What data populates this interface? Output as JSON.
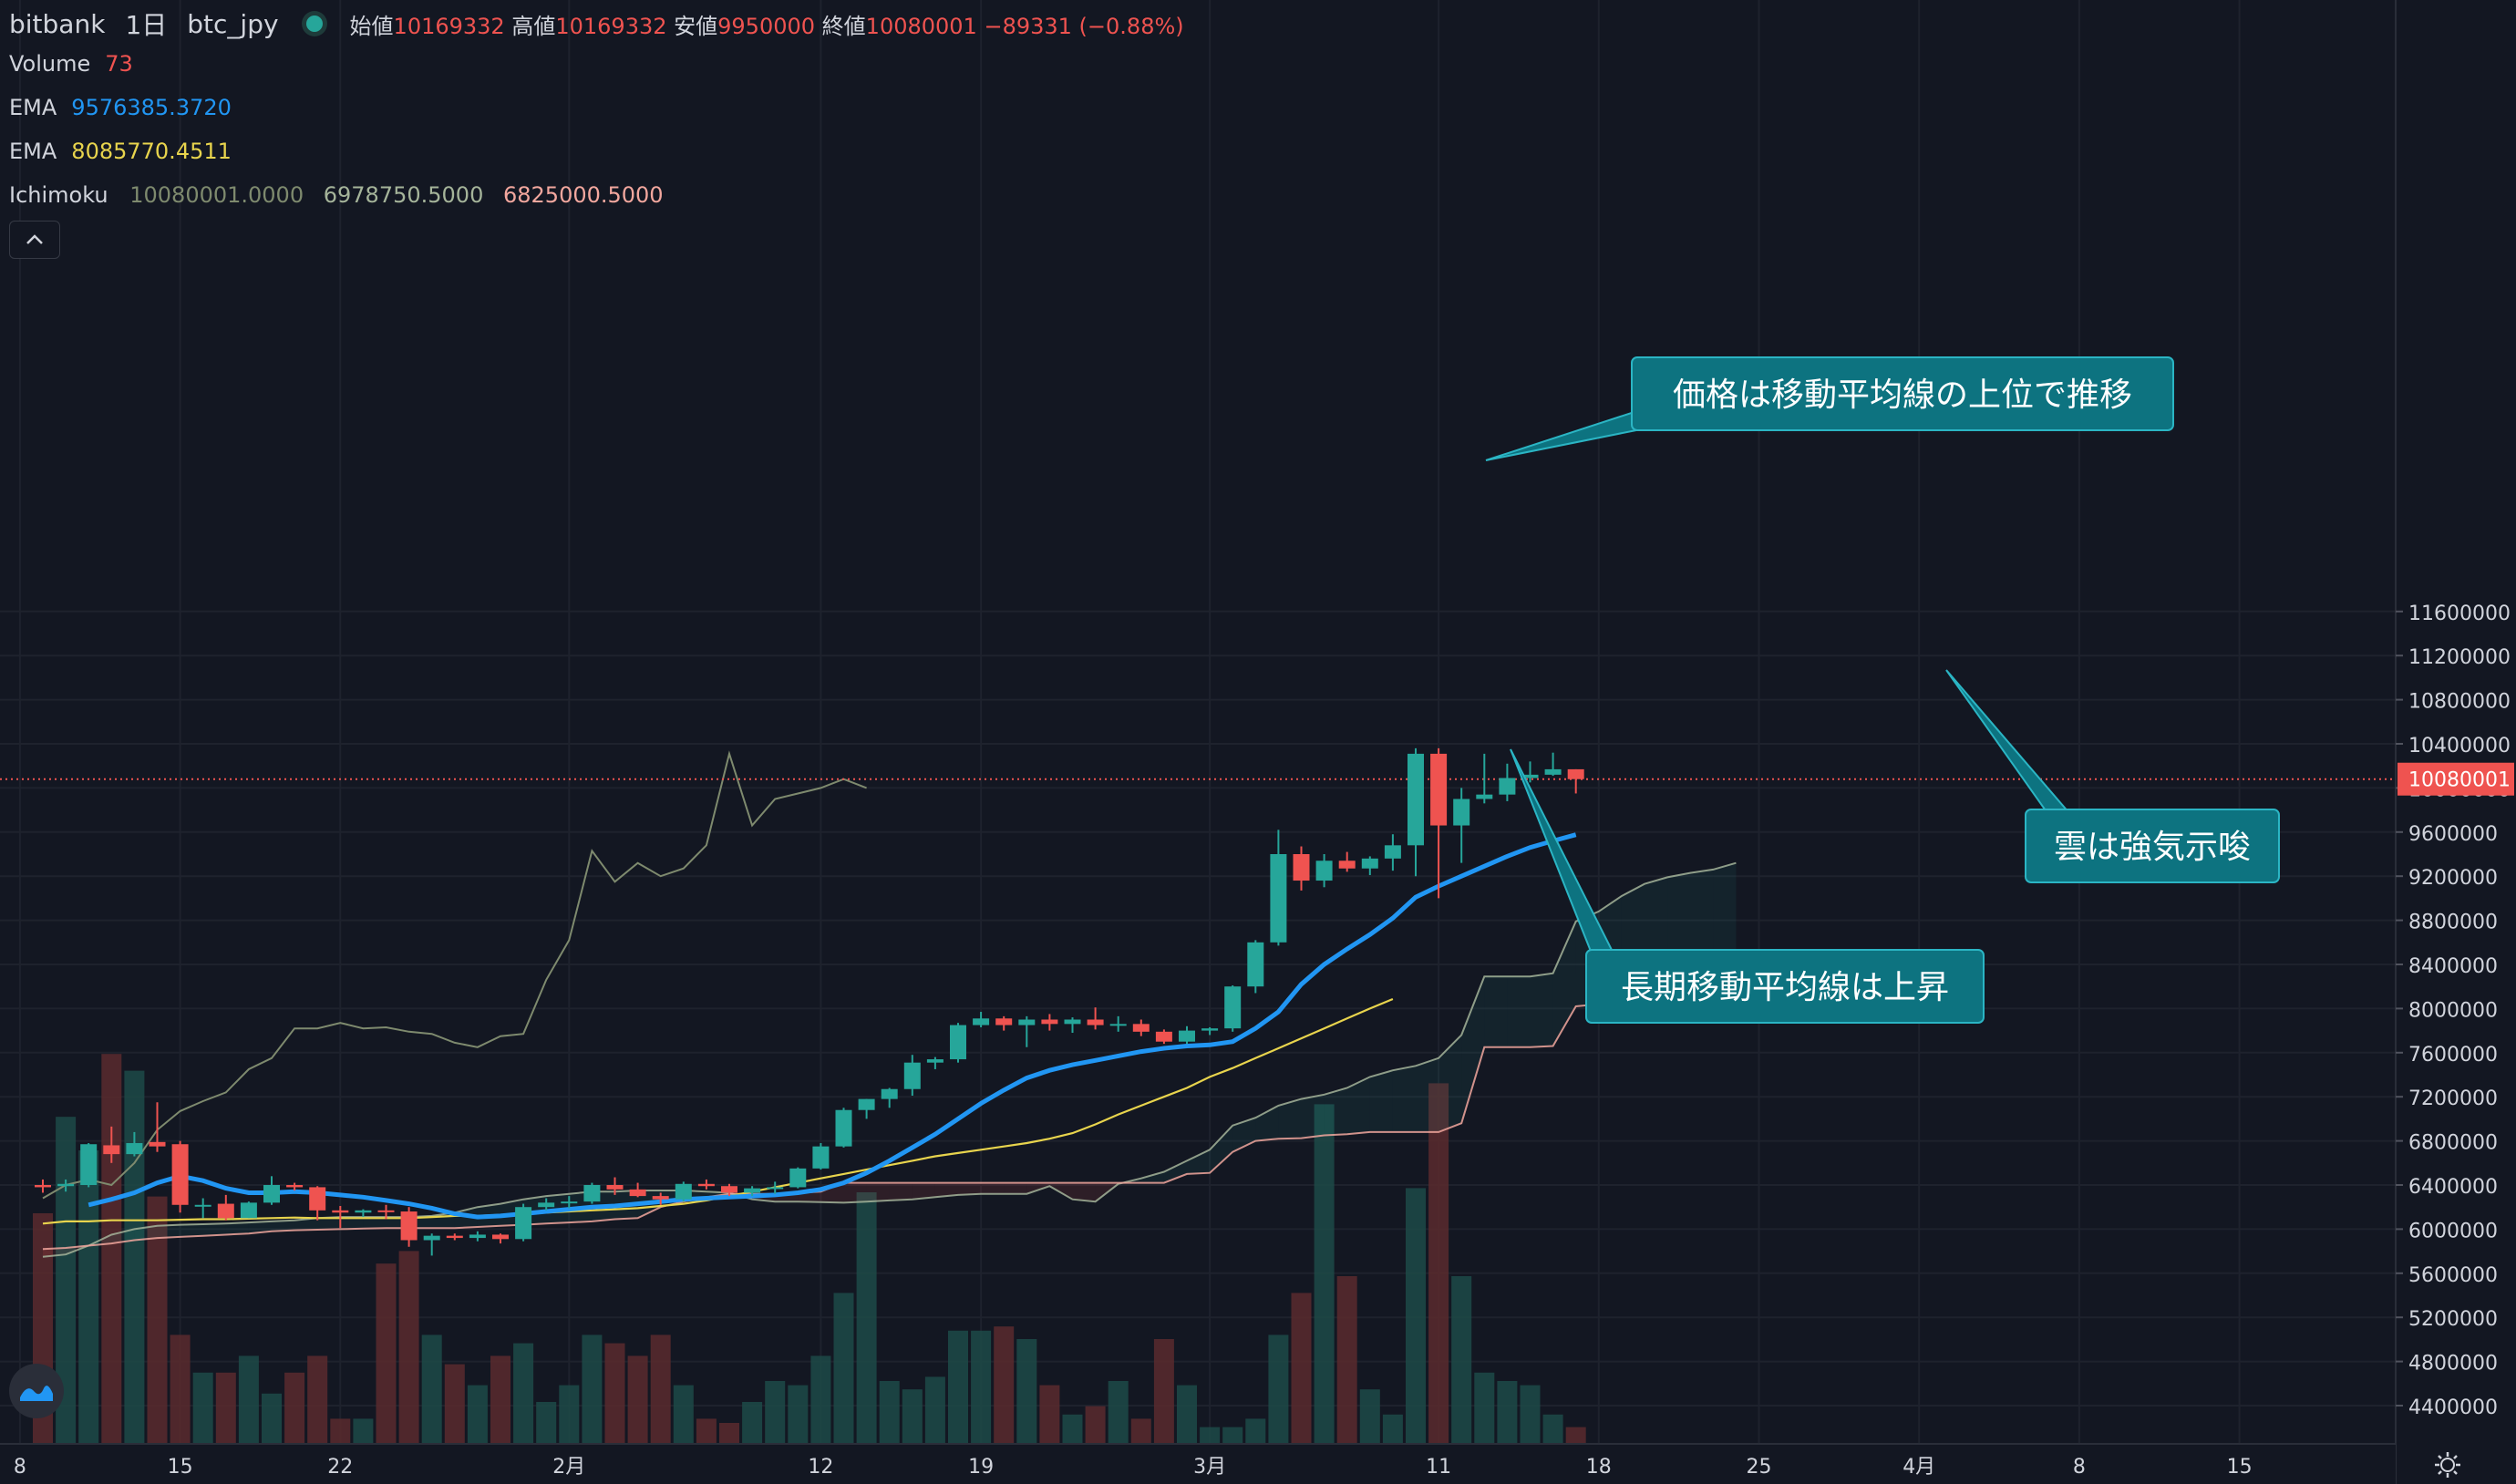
{
  "header": {
    "exchange": "bitbank",
    "interval": "1日",
    "pair": "btc_jpy",
    "open_label": "始値",
    "open": "10169332",
    "high_label": "高値",
    "high": "10169332",
    "low_label": "安値",
    "low": "9950000",
    "close_label": "終値",
    "close": "10080001",
    "change": "−89331 (−0.88%)"
  },
  "indicators": {
    "volume": {
      "label": "Volume",
      "value": "73",
      "color": "#ef5350"
    },
    "ema_fast": {
      "label": "EMA",
      "value": "9576385.3720",
      "color": "#2196f3"
    },
    "ema_slow": {
      "label": "EMA",
      "value": "8085770.4511",
      "color": "#e8d44d"
    },
    "ichimoku": {
      "label": "Ichimoku",
      "values": [
        "10080001.0000",
        "6978750.5000",
        "6825000.5000"
      ],
      "colors": [
        "#7e8a6e",
        "#a5b49a",
        "#f2a79e"
      ]
    }
  },
  "colors": {
    "background": "#131722",
    "up": "#26a69a",
    "down": "#ef5350",
    "grid": "#1e222d",
    "axis_text": "#d1d4dc",
    "annotation_bg": "#0d7380",
    "annotation_border": "#2bb5c4"
  },
  "icons": {
    "collapse": "chevron-up-icon",
    "logo": "tradingview-logo-icon",
    "settings": "gear-icon"
  },
  "chart_data": {
    "type": "candlestick",
    "price_axis": {
      "ticks": [
        11600000,
        11200000,
        10800000,
        10400000,
        10000000,
        9600000,
        9200000,
        8800000,
        8400000,
        8000000,
        7600000,
        7200000,
        6800000,
        6400000,
        6000000,
        5600000,
        5200000,
        4800000,
        4400000
      ],
      "labels": [
        "11600000",
        "11200000",
        "10800000",
        "10400000",
        "10000000",
        "9600000",
        "9200000",
        "8800000",
        "8400000",
        "8000000",
        "7600000",
        "7200000",
        "6800000",
        "6400000",
        "6000000",
        "5600000",
        "5200000",
        "4800000",
        "4400000"
      ],
      "last_price": 10080001,
      "last_price_label": "10080001",
      "ylim": [
        4400000,
        11700000
      ]
    },
    "time_axis": {
      "labels": [
        {
          "t": -1,
          "label": "8"
        },
        {
          "t": 6,
          "label": "15"
        },
        {
          "t": 13,
          "label": "22"
        },
        {
          "t": 23,
          "label": "2月"
        },
        {
          "t": 34,
          "label": "12"
        },
        {
          "t": 41,
          "label": "19"
        },
        {
          "t": 51,
          "label": "3月"
        },
        {
          "t": 61,
          "label": "11"
        },
        {
          "t": 68,
          "label": "18"
        },
        {
          "t": 75,
          "label": "25"
        },
        {
          "t": 82,
          "label": "4月"
        },
        {
          "t": 89,
          "label": "8"
        },
        {
          "t": 96,
          "label": "15"
        }
      ]
    },
    "candles": [
      [
        6400000,
        6450000,
        6330000,
        6380000
      ],
      [
        6390000,
        6450000,
        6340000,
        6410000
      ],
      [
        6400000,
        6780000,
        6380000,
        6770000
      ],
      [
        6760000,
        6930000,
        6600000,
        6680000
      ],
      [
        6680000,
        6880000,
        6660000,
        6780000
      ],
      [
        6790000,
        7150000,
        6700000,
        6750000
      ],
      [
        6770000,
        6800000,
        6150000,
        6220000
      ],
      [
        6220000,
        6280000,
        6100000,
        6220000
      ],
      [
        6230000,
        6310000,
        6080000,
        6100000
      ],
      [
        6100000,
        6250000,
        6100000,
        6240000
      ],
      [
        6240000,
        6480000,
        6220000,
        6400000
      ],
      [
        6400000,
        6420000,
        6350000,
        6380000
      ],
      [
        6380000,
        6390000,
        6080000,
        6170000
      ],
      [
        6170000,
        6210000,
        6010000,
        6150000
      ],
      [
        6150000,
        6180000,
        6110000,
        6170000
      ],
      [
        6170000,
        6220000,
        6090000,
        6160000
      ],
      [
        6160000,
        6200000,
        5840000,
        5900000
      ],
      [
        5900000,
        5960000,
        5760000,
        5940000
      ],
      [
        5940000,
        5960000,
        5900000,
        5920000
      ],
      [
        5920000,
        5980000,
        5890000,
        5950000
      ],
      [
        5950000,
        5960000,
        5870000,
        5910000
      ],
      [
        5910000,
        6230000,
        5890000,
        6200000
      ],
      [
        6200000,
        6280000,
        6170000,
        6240000
      ],
      [
        6240000,
        6300000,
        6190000,
        6250000
      ],
      [
        6250000,
        6420000,
        6230000,
        6400000
      ],
      [
        6400000,
        6470000,
        6310000,
        6360000
      ],
      [
        6360000,
        6420000,
        6290000,
        6300000
      ],
      [
        6300000,
        6330000,
        6220000,
        6270000
      ],
      [
        6270000,
        6430000,
        6250000,
        6410000
      ],
      [
        6410000,
        6450000,
        6360000,
        6390000
      ],
      [
        6390000,
        6410000,
        6300000,
        6330000
      ],
      [
        6330000,
        6390000,
        6300000,
        6370000
      ],
      [
        6370000,
        6430000,
        6320000,
        6380000
      ],
      [
        6380000,
        6560000,
        6370000,
        6550000
      ],
      [
        6550000,
        6780000,
        6540000,
        6750000
      ],
      [
        6750000,
        7100000,
        6740000,
        7080000
      ],
      [
        7080000,
        7180000,
        7000000,
        7180000
      ],
      [
        7180000,
        7280000,
        7100000,
        7270000
      ],
      [
        7270000,
        7580000,
        7210000,
        7510000
      ],
      [
        7510000,
        7560000,
        7450000,
        7540000
      ],
      [
        7540000,
        7870000,
        7510000,
        7850000
      ],
      [
        7850000,
        7970000,
        7830000,
        7910000
      ],
      [
        7910000,
        7930000,
        7800000,
        7850000
      ],
      [
        7850000,
        7930000,
        7650000,
        7900000
      ],
      [
        7900000,
        7950000,
        7800000,
        7860000
      ],
      [
        7860000,
        7920000,
        7780000,
        7900000
      ],
      [
        7900000,
        8010000,
        7810000,
        7850000
      ],
      [
        7850000,
        7930000,
        7790000,
        7860000
      ],
      [
        7860000,
        7900000,
        7750000,
        7790000
      ],
      [
        7790000,
        7810000,
        7680000,
        7700000
      ],
      [
        7700000,
        7840000,
        7680000,
        7800000
      ],
      [
        7800000,
        7830000,
        7760000,
        7820000
      ],
      [
        7820000,
        8210000,
        7790000,
        8200000
      ],
      [
        8200000,
        8620000,
        8140000,
        8600000
      ],
      [
        8600000,
        9620000,
        8570000,
        9400000
      ],
      [
        9400000,
        9470000,
        9070000,
        9160000
      ],
      [
        9160000,
        9400000,
        9100000,
        9340000
      ],
      [
        9340000,
        9420000,
        9240000,
        9270000
      ],
      [
        9270000,
        9380000,
        9210000,
        9360000
      ],
      [
        9360000,
        9580000,
        9250000,
        9480000
      ],
      [
        9480000,
        10360000,
        9200000,
        10310000
      ],
      [
        10310000,
        10360000,
        9000000,
        9660000
      ],
      [
        9660000,
        10000000,
        9320000,
        9900000
      ],
      [
        9900000,
        10310000,
        9860000,
        9940000
      ],
      [
        9940000,
        10220000,
        9880000,
        10090000
      ],
      [
        10090000,
        10240000,
        10050000,
        10120000
      ],
      [
        10120000,
        10320000,
        10110000,
        10169332
      ],
      [
        10169332,
        10169332,
        9950000,
        10080001
      ]
    ],
    "volume": [
      0.55,
      0.78,
      0.7,
      0.93,
      0.89,
      0.59,
      0.26,
      0.17,
      0.17,
      0.21,
      0.12,
      0.17,
      0.21,
      0.06,
      0.06,
      0.43,
      0.46,
      0.26,
      0.19,
      0.14,
      0.21,
      0.24,
      0.1,
      0.14,
      0.26,
      0.24,
      0.21,
      0.26,
      0.14,
      0.06,
      0.05,
      0.1,
      0.15,
      0.14,
      0.21,
      0.36,
      0.6,
      0.15,
      0.13,
      0.16,
      0.27,
      0.27,
      0.28,
      0.25,
      0.14,
      0.07,
      0.09,
      0.15,
      0.06,
      0.25,
      0.14,
      0.04,
      0.04,
      0.06,
      0.26,
      0.36,
      0.81,
      0.4,
      0.13,
      0.07,
      0.61,
      0.86,
      0.4,
      0.17,
      0.15,
      0.14,
      0.07,
      0.04
    ],
    "ema_fast": [
      6220000,
      6270000,
      6330000,
      6420000,
      6480000,
      6440000,
      6370000,
      6330000,
      6330000,
      6340000,
      6330000,
      6310000,
      6290000,
      6260000,
      6230000,
      6190000,
      6140000,
      6110000,
      6120000,
      6140000,
      6160000,
      6180000,
      6200000,
      6210000,
      6230000,
      6250000,
      6270000,
      6280000,
      6290000,
      6300000,
      6310000,
      6330000,
      6360000,
      6420000,
      6510000,
      6620000,
      6740000,
      6860000,
      7000000,
      7140000,
      7260000,
      7370000,
      7440000,
      7490000,
      7530000,
      7570000,
      7610000,
      7640000,
      7660000,
      7670000,
      7700000,
      7820000,
      7970000,
      8220000,
      8400000,
      8540000,
      8670000,
      8820000,
      9010000,
      9110000,
      9200000,
      9290000,
      9380000,
      9460000,
      9520000,
      9576385
    ],
    "ema_slow": [
      6050000,
      6070000,
      6070000,
      6080000,
      6080000,
      6080000,
      6085000,
      6090000,
      6090000,
      6095000,
      6100000,
      6105000,
      6100000,
      6100000,
      6100000,
      6100000,
      6100000,
      6110000,
      6120000,
      6120000,
      6130000,
      6140000,
      6150000,
      6160000,
      6170000,
      6180000,
      6190000,
      6210000,
      6230000,
      6260000,
      6300000,
      6340000,
      6380000,
      6420000,
      6460000,
      6500000,
      6540000,
      6580000,
      6620000,
      6660000,
      6690000,
      6720000,
      6750000,
      6780000,
      6820000,
      6870000,
      6950000,
      7040000,
      7120000,
      7200000,
      7280000,
      7380000,
      7460000,
      7550000,
      7640000,
      7730000,
      7820000,
      7910000,
      8000000,
      8085770
    ],
    "chikou": [
      6280000,
      6400000,
      6450000,
      6400000,
      6600000,
      6900000,
      7070000,
      7160000,
      7240000,
      7450000,
      7550000,
      7820000,
      7820000,
      7870000,
      7820000,
      7830000,
      7790000,
      7770000,
      7690000,
      7650000,
      7750000,
      7770000,
      8260000,
      8620000,
      9430000,
      9150000,
      9320000,
      9200000,
      9270000,
      9480000,
      10310000,
      9660000,
      9900000,
      9950000,
      10000000,
      10080001,
      10000000
    ],
    "span_a": [
      5750000,
      5770000,
      5850000,
      5950000,
      6000000,
      6030000,
      6040000,
      6045000,
      6050000,
      6060000,
      6070000,
      6080000,
      6100000,
      6110000,
      6110000,
      6110000,
      6110000,
      6120000,
      6150000,
      6200000,
      6230000,
      6270000,
      6300000,
      6320000,
      6340000,
      6340000,
      6350000,
      6350000,
      6350000,
      6340000,
      6330000,
      6270000,
      6250000,
      6250000,
      6245000,
      6240000,
      6250000,
      6260000,
      6270000,
      6290000,
      6310000,
      6320000,
      6320000,
      6320000,
      6390000,
      6270000,
      6250000,
      6410000,
      6460000,
      6520000,
      6620000,
      6720000,
      6940000,
      7010000,
      7120000,
      7180000,
      7220000,
      7280000,
      7380000,
      7440000,
      7480000,
      7550000,
      7760000,
      8290000,
      8290000,
      8290000,
      8320000,
      8790000,
      8880000,
      9020000,
      9130000,
      9190000,
      9230000,
      9260000,
      9320000
    ],
    "span_b": [
      5820000,
      5830000,
      5850000,
      5870000,
      5900000,
      5920000,
      5930000,
      5940000,
      5950000,
      5960000,
      5980000,
      5990000,
      5995000,
      6000000,
      6005000,
      6010000,
      6010000,
      6010000,
      6010000,
      6020000,
      6030000,
      6040000,
      6050000,
      6060000,
      6070000,
      6090000,
      6100000,
      6200000,
      6250000,
      6290000,
      6320000,
      6320000,
      6320000,
      6330000,
      6340000,
      6420000,
      6420000,
      6420000,
      6420000,
      6420000,
      6420000,
      6420000,
      6420000,
      6420000,
      6420000,
      6420000,
      6420000,
      6420000,
      6420000,
      6420000,
      6500000,
      6510000,
      6700000,
      6800000,
      6820000,
      6825000,
      6850000,
      6860000,
      6880000,
      6880000,
      6880000,
      6880000,
      6960000,
      7650000,
      7650000,
      7650000,
      7660000,
      8020000,
      8040000,
      8040000,
      8040000,
      8040000,
      8040000,
      8040000,
      8040000
    ]
  },
  "annotations": [
    {
      "text": "価格は移動平均線の上位で推移"
    },
    {
      "text": "雲は強気示唆"
    },
    {
      "text": "長期移動平均線は上昇"
    }
  ]
}
